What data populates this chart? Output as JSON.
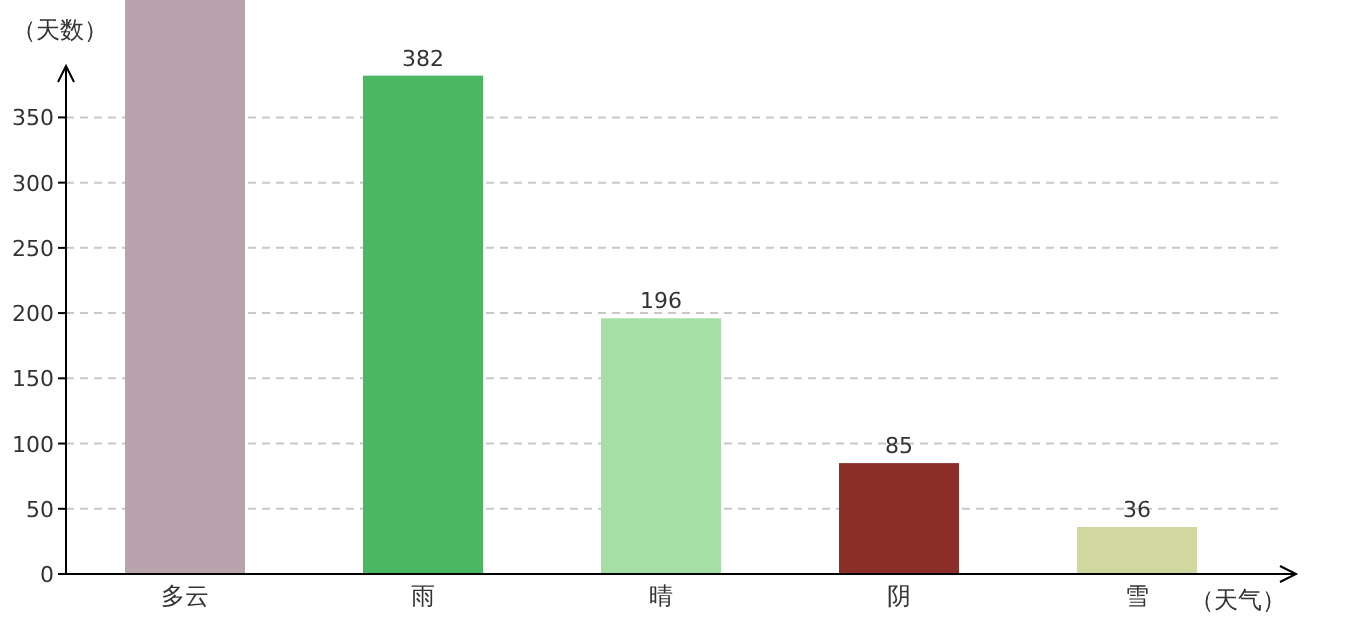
{
  "chart_data": {
    "type": "bar",
    "ylabel": "（天数）",
    "xlabel": "（天气）",
    "categories": [
      "多云",
      "雨",
      "晴",
      "阴",
      "雪"
    ],
    "values": [
      440,
      382,
      196,
      85,
      36
    ],
    "colors": [
      "#b9a4ad",
      "#4ab862",
      "#a6dfa6",
      "#8a2e27",
      "#d0d8a0"
    ],
    "value_labels": [
      null,
      "382",
      "196",
      "85",
      "36"
    ],
    "ylim": [
      0,
      440
    ],
    "yticks": [
      0,
      50,
      100,
      150,
      200,
      250,
      300,
      350
    ],
    "grid": "y"
  }
}
